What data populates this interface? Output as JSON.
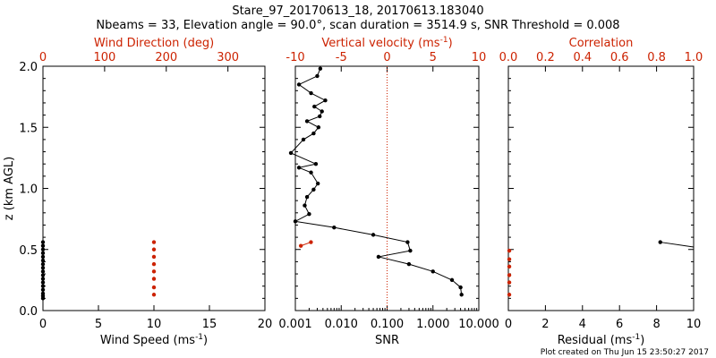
{
  "header": {
    "line1": "Stare_97_20170613_18, 20170613.183040",
    "line2": "Nbeams = 33, Elevation angle = 90.0°, scan duration = 3514.9 s, SNR Threshold = 0.008"
  },
  "footer": "Plot created on Thu Jun 15 23:50:27 2017",
  "colors": {
    "black": "#000000",
    "red": "#cc2200"
  },
  "chart_data": [
    {
      "type": "scatter",
      "panel": "wind",
      "ylabel": "z (km AGL)",
      "ylim": [
        0,
        2.0
      ],
      "yticks": [
        "0.0",
        "0.5",
        "1.0",
        "1.5",
        "2.0"
      ],
      "bottom_axis": {
        "label": "Wind Speed (ms",
        "unit_sup": "-1",
        "unit_close": ")",
        "lim": [
          0,
          20
        ],
        "ticks": [
          "0",
          "5",
          "10",
          "15",
          "20"
        ]
      },
      "top_axis": {
        "label": "Wind Direction (deg)",
        "lim": [
          0,
          360
        ],
        "ticks": [
          "0",
          "100",
          "200",
          "300"
        ]
      },
      "series": [
        {
          "axis": "bottom",
          "color": "#000000",
          "x": [
            0,
            0,
            0,
            0,
            0,
            0,
            0,
            0,
            0,
            0,
            0,
            0,
            0,
            0,
            0,
            0,
            0
          ],
          "y": [
            0.56,
            0.53,
            0.5,
            0.47,
            0.44,
            0.41,
            0.38,
            0.35,
            0.32,
            0.29,
            0.26,
            0.23,
            0.2,
            0.17,
            0.14,
            0.12,
            0.1
          ]
        },
        {
          "axis": "top",
          "color": "#cc2200",
          "x": [
            180,
            180,
            180,
            180,
            180,
            180,
            180,
            180
          ],
          "y": [
            0.56,
            0.5,
            0.44,
            0.38,
            0.32,
            0.26,
            0.19,
            0.13
          ]
        }
      ]
    },
    {
      "type": "line",
      "panel": "snr",
      "ylim": [
        0,
        2.0
      ],
      "bottom_axis": {
        "label": "SNR",
        "scale": "log",
        "lim": [
          0.001,
          10
        ],
        "ticks": [
          "0.001",
          "0.010",
          "0.100",
          "1.000",
          "10.000"
        ]
      },
      "top_axis": {
        "label": "Vertical velocity (ms",
        "unit_sup": "-1",
        "unit_close": ")",
        "lim": [
          -10,
          10
        ],
        "ticks": [
          "-10",
          "-5",
          "0",
          "5",
          "10"
        ],
        "zero_line": true
      },
      "series": [
        {
          "axis": "bottom",
          "color": "#000000",
          "x": [
            0.0035,
            0.003,
            0.0012,
            0.0022,
            0.0045,
            0.0026,
            0.0038,
            0.0034,
            0.0018,
            0.0032,
            0.0025,
            0.0015,
            0.0008,
            0.0028,
            0.0012,
            0.0022,
            0.0031,
            0.0025,
            0.0018,
            0.0016,
            0.002,
            0.001,
            0.007,
            0.05,
            0.28,
            0.32,
            0.065,
            0.3,
            1.0,
            2.6,
            4.0,
            4.2
          ],
          "y": [
            1.98,
            1.92,
            1.85,
            1.78,
            1.72,
            1.67,
            1.63,
            1.59,
            1.55,
            1.5,
            1.45,
            1.4,
            1.29,
            1.2,
            1.17,
            1.13,
            1.04,
            0.99,
            0.93,
            0.86,
            0.79,
            0.73,
            0.68,
            0.62,
            0.56,
            0.49,
            0.44,
            0.38,
            0.32,
            0.25,
            0.19,
            0.13
          ]
        },
        {
          "axis": "top",
          "color": "#cc2200",
          "x": [
            -8.3,
            -9.4
          ],
          "y": [
            0.56,
            0.53
          ]
        }
      ]
    },
    {
      "type": "scatter",
      "panel": "correlation",
      "ylim": [
        0,
        2.0
      ],
      "bottom_axis": {
        "label": "Residual (ms",
        "unit_sup": "-1",
        "unit_close": ")",
        "lim": [
          0,
          10
        ],
        "ticks": [
          "0",
          "2",
          "4",
          "6",
          "8",
          "10"
        ]
      },
      "top_axis": {
        "label": "Correlation",
        "lim": [
          0,
          1
        ],
        "ticks": [
          "0.0",
          "0.2",
          "0.4",
          "0.6",
          "0.8",
          "1.0"
        ]
      },
      "series": [
        {
          "axis": "bottom",
          "color": "#000000",
          "x": [
            8.2,
            10.0
          ],
          "y": [
            0.56,
            0.52
          ]
        },
        {
          "axis": "top",
          "color": "#cc2200",
          "x": [
            0.005,
            0.005,
            0.005,
            0.005,
            0.005,
            0.005
          ],
          "y": [
            0.49,
            0.42,
            0.36,
            0.29,
            0.23,
            0.13
          ]
        }
      ]
    }
  ]
}
